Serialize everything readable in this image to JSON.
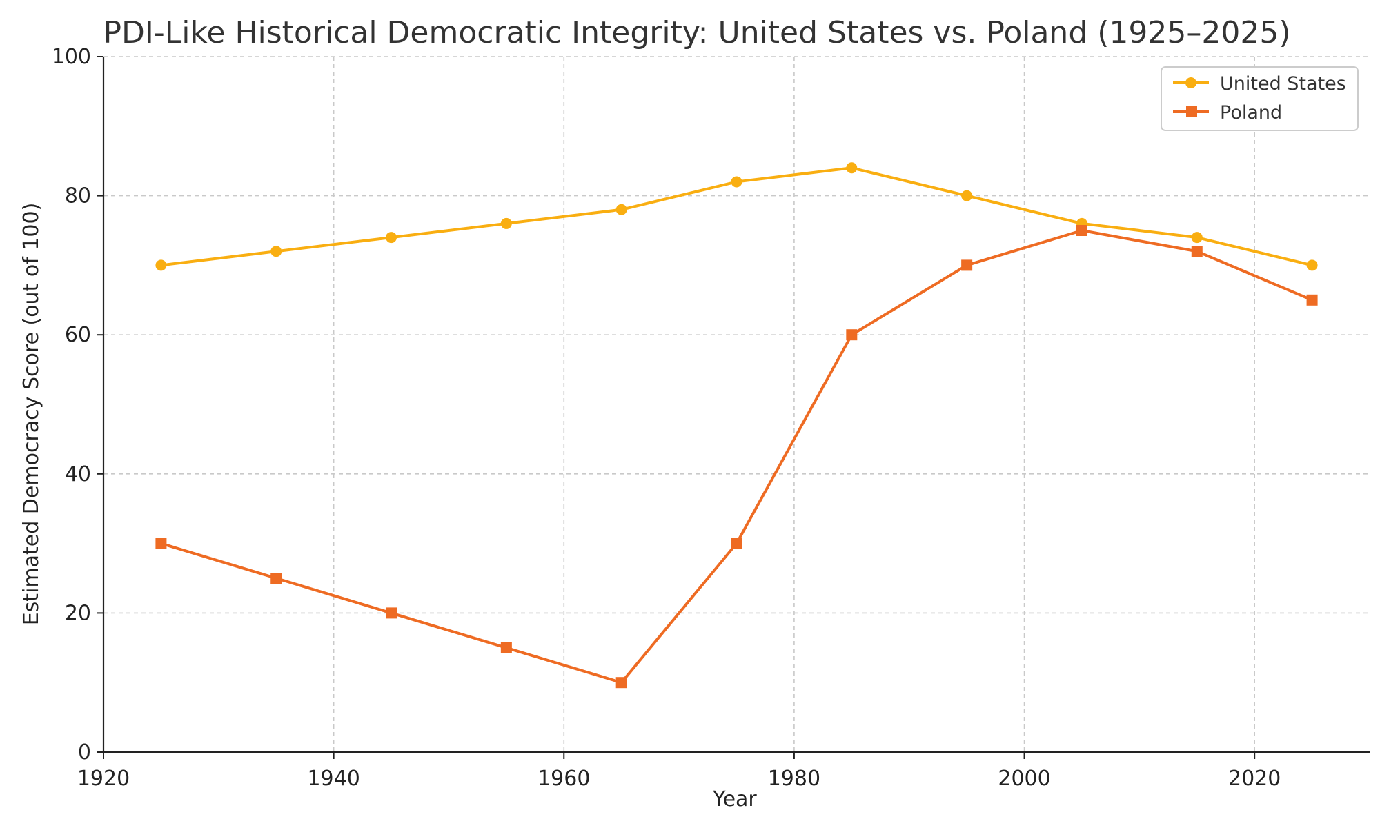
{
  "chart_data": {
    "type": "line",
    "title": "PDI-Like Historical Democratic Integrity: United States vs. Poland (1925–2025)",
    "xlabel": "Year",
    "ylabel": "Estimated Democracy Score (out of 100)",
    "xlim": [
      1920,
      2030
    ],
    "ylim": [
      0,
      100
    ],
    "x_ticks": [
      "1920",
      "1940",
      "1960",
      "1980",
      "2000",
      "2020"
    ],
    "y_ticks": [
      "0",
      "20",
      "40",
      "60",
      "80",
      "100"
    ],
    "grid": true,
    "legend_position": "top-right",
    "x": [
      1925,
      1935,
      1945,
      1955,
      1965,
      1975,
      1985,
      1995,
      2005,
      2015,
      2025
    ],
    "series": [
      {
        "name": "United States",
        "marker": "circle",
        "color": "#F9AE11",
        "values": [
          70,
          72,
          74,
          76,
          78,
          82,
          84,
          80,
          76,
          74,
          70
        ]
      },
      {
        "name": "Poland",
        "marker": "square",
        "color": "#EE6B23",
        "values": [
          30,
          25,
          20,
          15,
          10,
          30,
          60,
          70,
          75,
          72,
          65
        ]
      }
    ]
  }
}
